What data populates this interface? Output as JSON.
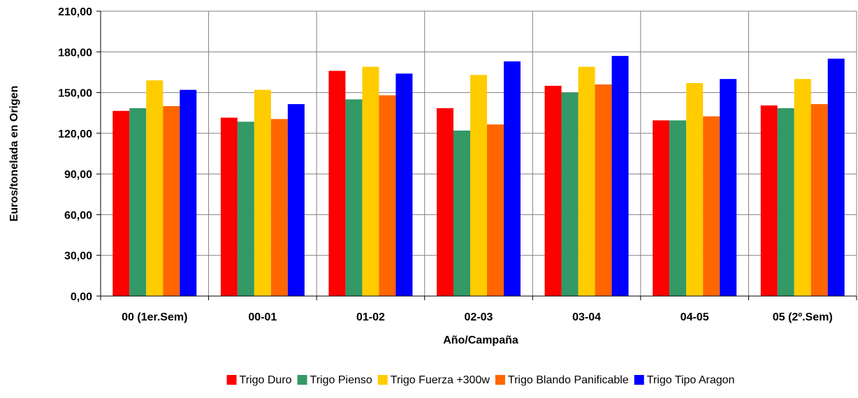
{
  "chart_data": {
    "type": "bar",
    "title": "",
    "xlabel": "Año/Campaña",
    "ylabel": "Euros/tonelada en Origen",
    "ylim": [
      0,
      210
    ],
    "ytick_values": [
      0,
      30,
      60,
      90,
      120,
      150,
      180,
      210
    ],
    "ytick_labels": [
      "0,00",
      "30,00",
      "60,00",
      "90,00",
      "120,00",
      "150,00",
      "180,00",
      "210,00"
    ],
    "categories": [
      "00 (1er.Sem)",
      "00-01",
      "01-02",
      "02-03",
      "03-04",
      "04-05",
      "05 (2º.Sem)"
    ],
    "grid": true,
    "legend_position": "bottom",
    "series": [
      {
        "name": "Trigo Duro",
        "color": "#ff0000",
        "values": [
          136.5,
          131.5,
          166,
          138.5,
          155,
          129.5,
          140.5
        ]
      },
      {
        "name": "Trigo Pienso",
        "color": "#339966",
        "values": [
          138.5,
          128.5,
          145,
          122,
          150,
          129.5,
          138.5
        ]
      },
      {
        "name": "Trigo Fuerza +300w",
        "color": "#ffcc00",
        "values": [
          159,
          152,
          169,
          163,
          169,
          157,
          160
        ]
      },
      {
        "name": "Trigo Blando Panificable",
        "color": "#ff6600",
        "values": [
          140,
          130.5,
          148,
          126.5,
          156,
          132.5,
          141.5
        ]
      },
      {
        "name": "Trigo Tipo Aragon",
        "color": "#0000ff",
        "values": [
          152,
          141.5,
          164,
          173,
          177,
          160,
          175
        ]
      }
    ]
  }
}
